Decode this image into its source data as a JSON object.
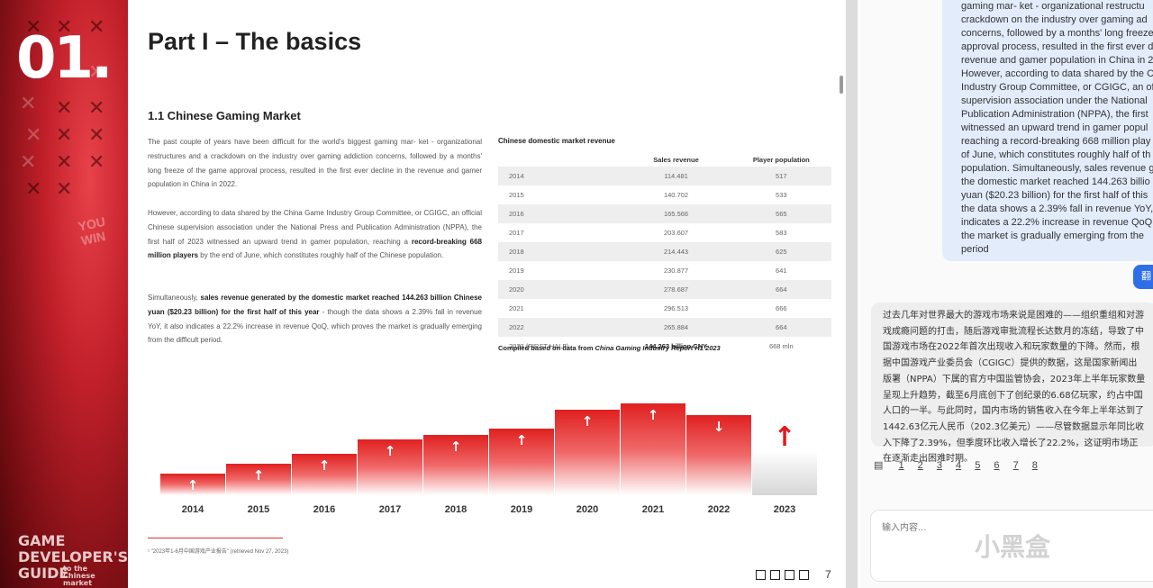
{
  "pdf": {
    "chapter_number": "01.",
    "you_win": "YOU WIN",
    "guide_logo": {
      "line1": "GAME",
      "line2": "DEVELOPER'S",
      "line3": "GUIDE",
      "sub": "to the Chinese market"
    },
    "page_title": "Part I – The basics",
    "section_title": "1.1 Chinese Gaming Market",
    "paragraph1": "The past couple of years have been difficult for the world's biggest gaming mar- ket - organizational restructures and a crackdown on the industry over gaming addiction concerns, followed by a months' long freeze of the game approval process, resulted in the first ever decline in the revenue and gamer population in China in 2022.",
    "paragraph2_a": "However, according to data shared by the China Game Industry Group Committee, or CGIGC, an official Chinese supervision association under the National Press and Publication Administration (NPPA), the first half of 2023 witnessed an upward trend in gamer population, reaching a ",
    "paragraph2_b": "record-breaking 668 million players",
    "paragraph2_c": " by the end of June, which constitutes roughly half of the Chinese population.",
    "paragraph3_a": "Simultaneously, ",
    "paragraph3_b": "sales revenue generated by the domestic market reached 144.263 billion Chinese yuan ($20.23 billion) for the first half of this year",
    "paragraph3_c": " - though the data shows a 2.39% fall in revenue YoY, it also indicates a 22.2% increase in revenue QoQ, which proves the market is gradually emerging from the difficult period.",
    "table_title": "Chinese domestic market revenue",
    "table_headers": [
      "",
      "Sales revenue",
      "Player population"
    ],
    "table_rows": [
      [
        "2014",
        "114.481",
        "517"
      ],
      [
        "2015",
        "140.702",
        "533"
      ],
      [
        "2016",
        "165.566",
        "565"
      ],
      [
        "2017",
        "203.607",
        "583"
      ],
      [
        "2018",
        "214.443",
        "625"
      ],
      [
        "2019",
        "230.877",
        "641"
      ],
      [
        "2020",
        "278.687",
        "664"
      ],
      [
        "2021",
        "296.513",
        "666"
      ],
      [
        "2022",
        "265.884",
        "664"
      ],
      [
        "2023 (FIRST HALF)",
        "144.263 billion CNY",
        "668 mln"
      ]
    ],
    "compiled_prefix": "Compiled based on data from ",
    "compiled_source": "China Gaming Industry Report H1 2023",
    "footnote": "¹ \"2023年1-6月中国游戏产业报告\" (retrieved Nov 27, 2023)",
    "page_number": "7"
  },
  "chart_data": {
    "type": "bar",
    "categories": [
      "2014",
      "2015",
      "2016",
      "2017",
      "2018",
      "2019",
      "2020",
      "2021",
      "2022",
      "2023"
    ],
    "values": [
      114.481,
      140.702,
      165.566,
      203.607,
      214.443,
      230.877,
      278.687,
      296.513,
      265.884,
      144.263
    ],
    "directions": [
      "up",
      "up",
      "up",
      "up",
      "up",
      "up",
      "up",
      "up",
      "down",
      "up"
    ],
    "title": "",
    "xlabel": "",
    "ylabel": "",
    "ylim": [
      0,
      300
    ]
  },
  "chat": {
    "english_lines": [
      "gaming mar- ket - organizational restructu",
      "crackdown on the industry over gaming ad",
      "concerns, followed by a months' long freeze",
      "approval process, resulted in the first ever d",
      "revenue and gamer population in China in 2",
      "However, according to data shared by the C",
      "Industry Group Committee, or CGIGC, an of",
      "supervision association under the National",
      "Publication Administration (NPPA), the first",
      "witnessed an upward trend in gamer popul",
      "reaching a record-breaking 668 million play",
      "of June, which constitutes roughly half of th",
      "population. Simultaneously, sales revenue g",
      "the domestic market reached 144.263 billio",
      "yuan ($20.23 billion) for the first half of this",
      "the data shows a 2.39% fall in revenue YoY,",
      "indicates a 22.2% increase in revenue QoQ,",
      "the market is gradually emerging from the",
      "period"
    ],
    "translate_label": "翻",
    "chinese_text": "过去几年对世界最大的游戏市场来说是困难的——组织重组和对游戏成瘾问题的打击，随后游戏审批流程长达数月的冻结，导致了中国游戏市场在2022年首次出现收入和玩家数量的下降。然而，根据中国游戏产业委员会（CGIGC）提供的数据，这是国家新闻出版署（NPPA）下属的官方中国监管协会，2023年上半年玩家数量呈现上升趋势，截至6月底创下了创纪录的6.68亿玩家，约占中国人口的一半。与此同时，国内市场的销售收入在今年上半年达到了1442.63亿元人民币（202.3亿美元）——尽管数据显示年同比收入下降了2.39%，但季度环比收入增长了22.2%，这证明市场正在逐渐走出困难时期。",
    "references": [
      "1",
      "2",
      "3",
      "4",
      "5",
      "6",
      "7",
      "8"
    ],
    "input_placeholder": "输入内容...",
    "watermark": "小黑盒"
  }
}
